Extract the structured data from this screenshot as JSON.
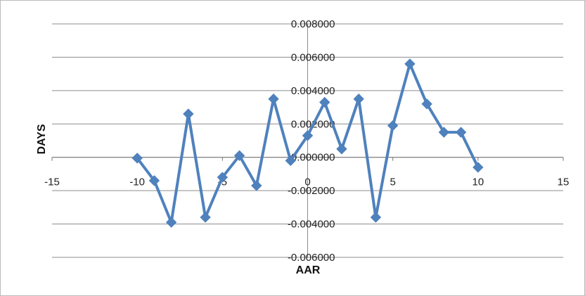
{
  "chart_data": {
    "type": "line",
    "title": "",
    "xlabel": "AAR",
    "ylabel": "DAYS",
    "xlim": [
      -15,
      15
    ],
    "ylim": [
      -0.006,
      0.008
    ],
    "x_ticks": [
      {
        "value": -15,
        "label": "-15"
      },
      {
        "value": -10,
        "label": "-10"
      },
      {
        "value": -5,
        "label": "-5"
      },
      {
        "value": 0,
        "label": "0"
      },
      {
        "value": 5,
        "label": "5"
      },
      {
        "value": 10,
        "label": "10"
      },
      {
        "value": 15,
        "label": "15"
      }
    ],
    "y_ticks": [
      {
        "value": 0.008,
        "label": "0.008000"
      },
      {
        "value": 0.006,
        "label": "0.006000"
      },
      {
        "value": 0.004,
        "label": "0.004000"
      },
      {
        "value": 0.002,
        "label": "0.002000"
      },
      {
        "value": 0.0,
        "label": "0.000000"
      },
      {
        "value": -0.002,
        "label": "-0.002000"
      },
      {
        "value": -0.004,
        "label": "-0.004000"
      },
      {
        "value": -0.006,
        "label": "-0.006000"
      }
    ],
    "grid": true,
    "legend": "none",
    "series": [
      {
        "color": "#4f81bd",
        "marker": "diamond",
        "x": [
          -10,
          -9,
          -8,
          -7,
          -6,
          -5,
          -4,
          -3,
          -2,
          -1,
          0,
          1,
          2,
          3,
          4,
          5,
          6,
          7,
          8,
          9,
          10
        ],
        "y": [
          -5e-05,
          -0.0014,
          -0.0039,
          0.0026,
          -0.0036,
          -0.0012,
          0.0001,
          -0.0017,
          0.0035,
          -0.0002,
          0.0013,
          0.0033,
          0.0005,
          0.0035,
          -0.0036,
          0.0019,
          0.0056,
          0.0032,
          0.0015,
          0.0015,
          -0.0006
        ]
      }
    ]
  }
}
